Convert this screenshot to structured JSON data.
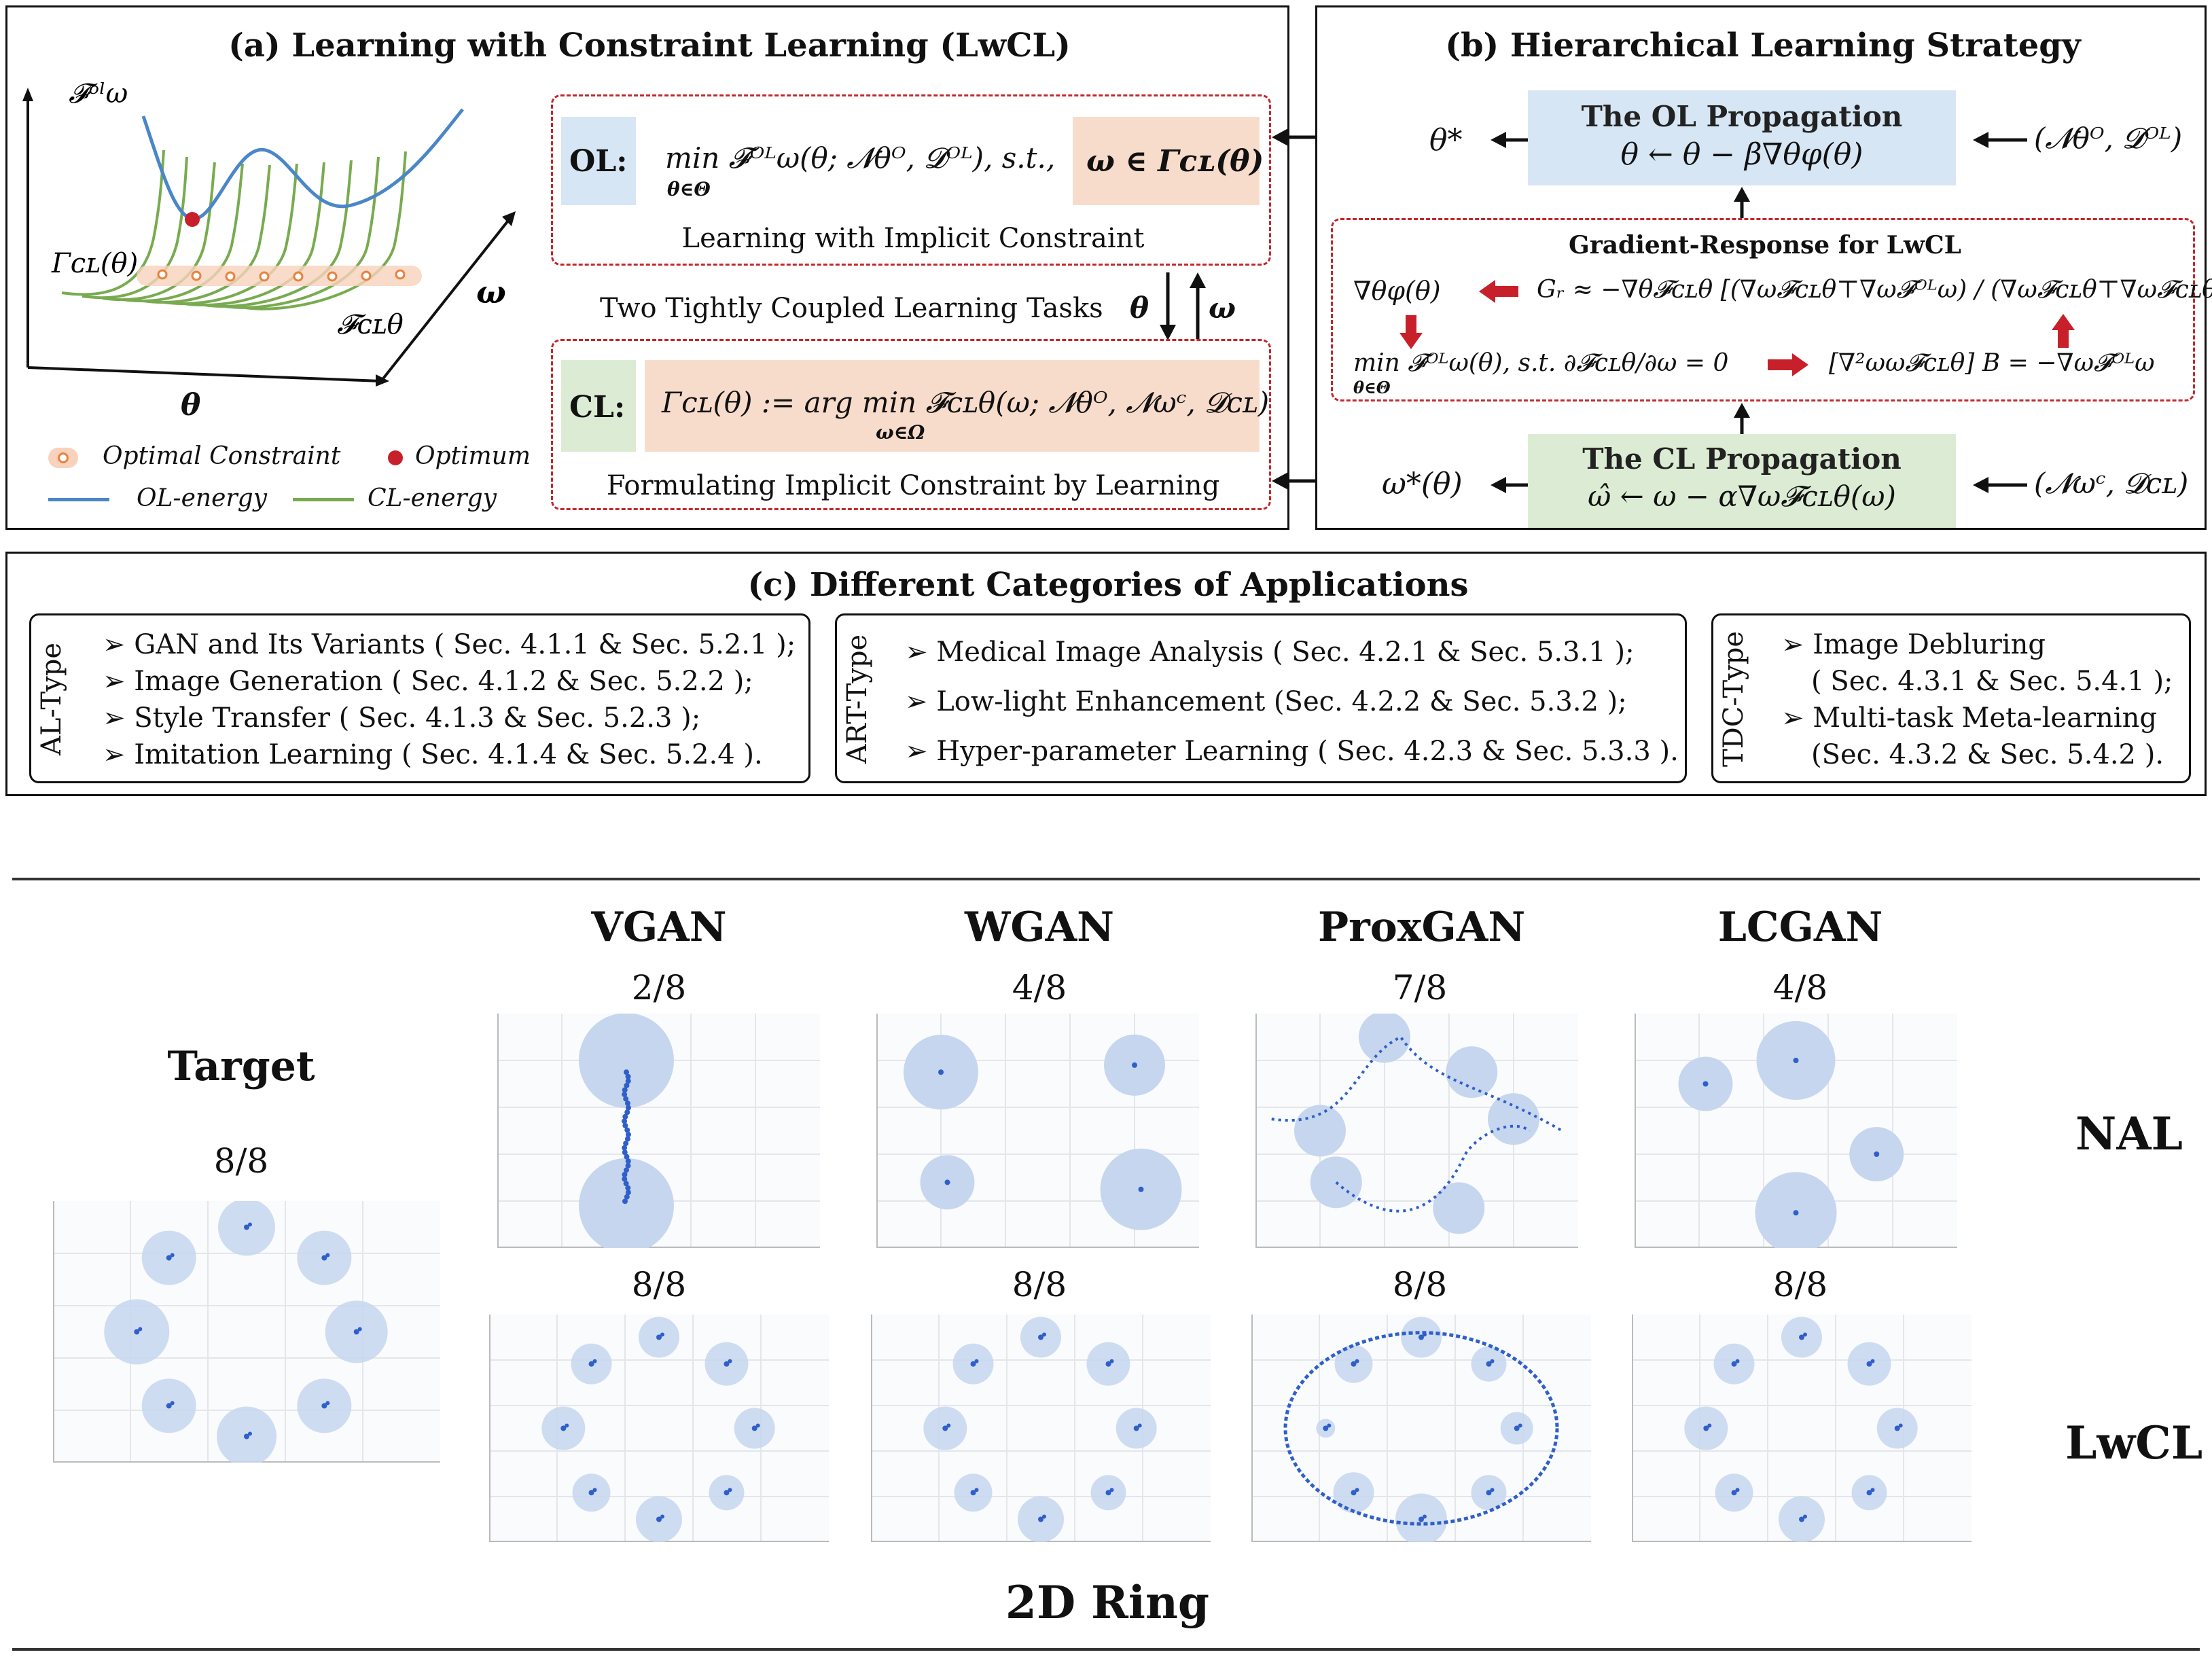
{
  "panel_a": {
    "title": "(a) Learning with Constraint Learning (LwCL)",
    "axis_theta": "θ",
    "axis_omega": "ω",
    "label_F_ol": "𝓕ᵒˡω",
    "label_gamma": "Γᴄʟ(θ)",
    "label_F_cl": "𝓕ᴄʟθ",
    "legend": {
      "optimal_constraint": "Optimal Constraint",
      "optimum": "Optimum",
      "ol_energy": "OL-energy",
      "cl_energy": "CL-energy"
    },
    "ol_box": {
      "tag": "OL:",
      "formula": "min 𝓕ᴼᴸω(θ; 𝓝θᴼ, 𝓓ᴼᴸ), s.t.,",
      "formula_sub": "θ∈Θ",
      "constraint": "ω ∈ Γᴄʟ(θ)",
      "caption": "Learning with Implicit Constraint"
    },
    "coupled_text": "Two Tightly Coupled Learning Tasks",
    "arrow_theta": "θ",
    "arrow_omega": "ω",
    "cl_box": {
      "tag": "CL:",
      "formula": "Γᴄʟ(θ) := arg min 𝓕ᴄʟθ(ω; 𝓝θᴼ, 𝓝ωᶜ, 𝓓ᴄʟ)",
      "formula_sub": "ω∈Ω",
      "caption": "Formulating Implicit Constraint by Learning"
    }
  },
  "panel_b": {
    "title": "(b) Hierarchical Learning Strategy",
    "ol_prop": {
      "title": "The OL Propagation",
      "formula": "θ ← θ − β∇θφ(θ)"
    },
    "theta_star": "θ*",
    "ol_input": "(𝓝θᴼ, 𝓓ᴼᴸ)",
    "grad_title": "Gradient-Response for LwCL",
    "grad_phi": "∇θφ(θ)",
    "grad_GR": "Gᵣ ≈ −∇θ𝓕ᴄʟθ [(∇ω𝓕ᴄʟθ⊤∇ω𝓕ᴼᴸω) / (∇ω𝓕ᴄʟθ⊤∇ω𝓕ᴄʟθ)]",
    "grad_min": "min 𝓕ᴼᴸω(θ), s.t. ∂𝓕ᴄʟθ/∂ω = 0",
    "grad_min_sub": "θ∈Θ",
    "grad_B": "[∇²ωω𝓕ᴄʟθ] B = −∇ω𝓕ᴼᴸω",
    "cl_prop": {
      "title": "The CL Propagation",
      "formula": "ω̂ ← ω − α∇ω𝓕ᴄʟθ(ω)"
    },
    "omega_star": "ω*(θ)",
    "cl_input": "(𝓝ωᶜ, 𝓓ᴄʟ)"
  },
  "panel_c": {
    "title": "(c) Different Categories of Applications",
    "groups": [
      {
        "type": "AL-Type",
        "items": [
          "GAN and Its Variants ( Sec. 4.1.1 & Sec. 5.2.1 );",
          "Image Generation ( Sec. 4.1.2 & Sec. 5.2.2 );",
          "Style Transfer ( Sec. 4.1.3 & Sec. 5.2.3 );",
          "Imitation Learning ( Sec. 4.1.4 & Sec. 5.2.4 )."
        ]
      },
      {
        "type": "ART-Type",
        "items": [
          "Medical Image Analysis ( Sec. 4.2.1 & Sec. 5.3.1 );",
          "Low-light Enhancement (Sec. 4.2.2 & Sec. 5.3.2 );",
          "Hyper-parameter Learning ( Sec. 4.2.3 & Sec. 5.3.3 )."
        ]
      },
      {
        "type": "TDC-Type",
        "items": [
          "Image Debluring",
          "( Sec. 4.3.1 & Sec. 5.4.1 );",
          "Multi-task Meta-learning",
          "(Sec. 4.3.2 & Sec. 5.4.2 )."
        ]
      }
    ]
  },
  "results": {
    "methods": [
      "VGAN",
      "WGAN",
      "ProxGAN",
      "LCGAN"
    ],
    "target_label": "Target",
    "target_score": "8/8",
    "row_labels": [
      "NAL",
      "LwCL"
    ],
    "nal_scores": [
      "2/8",
      "4/8",
      "7/8",
      "4/8"
    ],
    "lwcl_scores": [
      "8/8",
      "8/8",
      "8/8",
      "8/8"
    ],
    "footer": "2D Ring",
    "colors": {
      "circle": "#c6d6ee",
      "dot": "#2f5fc8"
    }
  }
}
